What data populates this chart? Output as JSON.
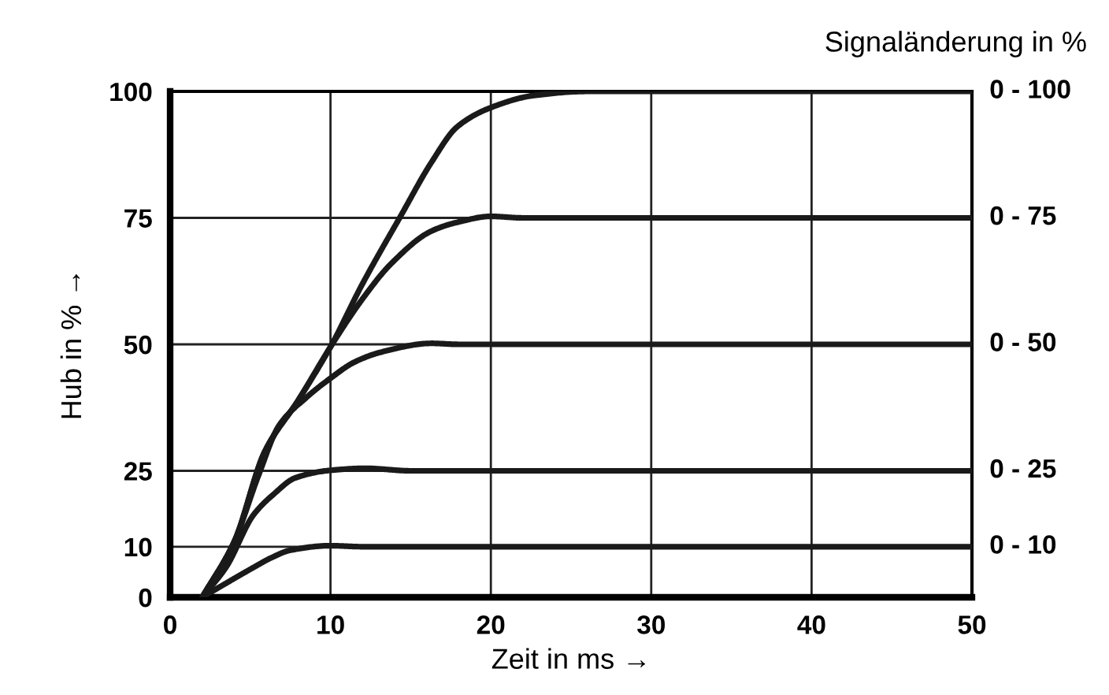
{
  "chart_data": {
    "type": "line",
    "xlabel": "Zeit in ms →",
    "ylabel": "Hub in % →",
    "annotations": [
      "Signaländerung in %"
    ],
    "xlim": [
      0,
      50
    ],
    "xticks": [
      0,
      10,
      20,
      30,
      40,
      50
    ],
    "ylim": [
      0,
      100
    ],
    "yticks": [
      0,
      10,
      25,
      50,
      75,
      100
    ],
    "grid": true,
    "line_style": "solid",
    "marker": "none",
    "series": [
      {
        "name": "0 - 100",
        "color": "#1a1a1a",
        "x": [
          2,
          4,
          5.9,
          8,
          10,
          12,
          14.4,
          16.3,
          17.9,
          20,
          22.7,
          26,
          50
        ],
        "values": [
          0,
          11,
          28.8,
          39,
          49.5,
          62,
          75.5,
          86,
          93,
          96.8,
          99.2,
          100,
          100
        ]
      },
      {
        "name": "0 - 75",
        "color": "#1a1a1a",
        "x": [
          2,
          4,
          5.9,
          8,
          10,
          12,
          13.8,
          16.3,
          18,
          20,
          22,
          50
        ],
        "values": [
          0,
          11,
          28.8,
          39,
          49.5,
          59,
          66,
          72.4,
          74.2,
          75.3,
          75,
          75
        ]
      },
      {
        "name": "0 - 50",
        "color": "#1a1a1a",
        "x": [
          2,
          4,
          5.5,
          6.8,
          8.5,
          10,
          11.5,
          13.2,
          16.3,
          18,
          50
        ],
        "values": [
          0,
          11,
          24,
          34,
          39.5,
          43.3,
          46.5,
          48.5,
          50.2,
          50,
          50
        ]
      },
      {
        "name": "0 - 25",
        "color": "#1a1a1a",
        "x": [
          2,
          3.5,
          5.2,
          6.5,
          7.8,
          10,
          12.2,
          15,
          50
        ],
        "values": [
          0,
          6,
          16.3,
          20.5,
          23.6,
          25.1,
          25.5,
          25,
          25
        ]
      },
      {
        "name": "0 - 10",
        "color": "#1a1a1a",
        "x": [
          2,
          3.5,
          5.2,
          6.3,
          7.5,
          10,
          12,
          50
        ],
        "values": [
          0,
          2.8,
          5.9,
          7.8,
          9.3,
          10.2,
          10,
          10
        ]
      }
    ]
  }
}
